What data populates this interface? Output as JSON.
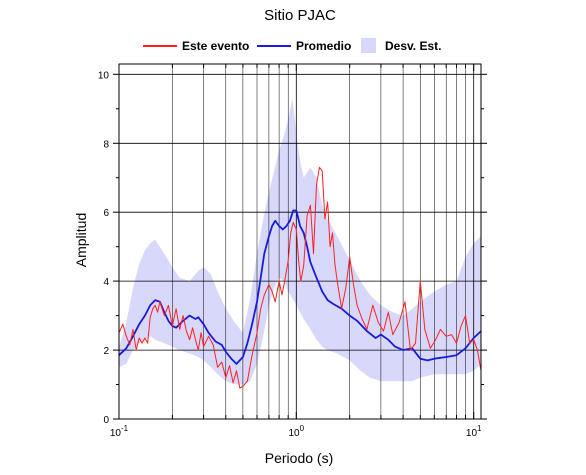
{
  "chart_data": {
    "type": "line",
    "title": "Sitio PJAC",
    "xlabel": "Periodo (s)",
    "ylabel": "Amplitud",
    "x_scale": "log",
    "xlim": [
      0.1,
      11
    ],
    "ylim": [
      0,
      10.3
    ],
    "x_ticks": [
      {
        "value": 0.1,
        "base": "10",
        "exp": "-1"
      },
      {
        "value": 1,
        "base": "10",
        "exp": "0"
      },
      {
        "value": 10,
        "base": "10",
        "exp": "1"
      }
    ],
    "y_ticks": [
      0,
      2,
      4,
      6,
      8,
      10
    ],
    "grid": true,
    "legend_position": "top",
    "legend": [
      {
        "label": "Este evento",
        "kind": "line",
        "color": "#ff2020"
      },
      {
        "label": "Promedio",
        "kind": "line",
        "color": "#1a1adc"
      },
      {
        "label": "Desv. Est.",
        "kind": "band",
        "color": "#d8d8fb"
      }
    ],
    "band": {
      "name": "Desv. Est.",
      "color": "#d8d8fb",
      "x": [
        0.1,
        0.11,
        0.12,
        0.13,
        0.14,
        0.15,
        0.16,
        0.18,
        0.2,
        0.22,
        0.25,
        0.28,
        0.3,
        0.33,
        0.36,
        0.4,
        0.45,
        0.5,
        0.55,
        0.6,
        0.65,
        0.7,
        0.75,
        0.8,
        0.85,
        0.9,
        0.95,
        1.0,
        1.05,
        1.1,
        1.2,
        1.3,
        1.4,
        1.5,
        1.7,
        2.0,
        2.3,
        2.6,
        3.0,
        3.5,
        4.0,
        4.5,
        5.0,
        6.0,
        7.0,
        8.0,
        9.0,
        10.0,
        11.0
      ],
      "upper": [
        2.1,
        2.8,
        3.8,
        4.5,
        4.9,
        5.1,
        5.2,
        4.8,
        4.4,
        4.1,
        4.0,
        4.3,
        4.4,
        4.2,
        3.7,
        3.2,
        2.8,
        2.5,
        3.5,
        4.8,
        5.8,
        6.6,
        7.2,
        7.8,
        8.2,
        8.7,
        9.3,
        8.3,
        7.5,
        7.0,
        7.3,
        7.0,
        6.2,
        5.8,
        5.3,
        4.6,
        4.0,
        3.6,
        3.3,
        3.1,
        3.0,
        3.2,
        3.4,
        3.7,
        3.9,
        4.0,
        4.7,
        5.1,
        5.3
      ],
      "lower": [
        1.5,
        1.6,
        2.0,
        2.2,
        2.3,
        2.4,
        2.3,
        2.2,
        2.1,
        2.0,
        1.9,
        1.8,
        1.7,
        1.5,
        1.3,
        1.1,
        1.0,
        1.0,
        1.1,
        1.6,
        2.4,
        3.3,
        3.8,
        4.1,
        4.0,
        3.7,
        3.5,
        3.3,
        3.1,
        2.9,
        2.6,
        2.3,
        2.1,
        2.0,
        1.9,
        1.7,
        1.4,
        1.2,
        1.1,
        1.1,
        1.1,
        1.1,
        1.2,
        1.3,
        1.3,
        1.3,
        1.3,
        1.4,
        1.6
      ]
    },
    "series": [
      {
        "name": "Promedio",
        "color": "#1a1adc",
        "x": [
          0.1,
          0.11,
          0.12,
          0.13,
          0.14,
          0.15,
          0.16,
          0.17,
          0.18,
          0.19,
          0.2,
          0.21,
          0.22,
          0.23,
          0.25,
          0.27,
          0.28,
          0.3,
          0.32,
          0.35,
          0.38,
          0.4,
          0.43,
          0.46,
          0.5,
          0.53,
          0.56,
          0.6,
          0.63,
          0.66,
          0.7,
          0.73,
          0.76,
          0.8,
          0.84,
          0.88,
          0.92,
          0.96,
          1.0,
          1.05,
          1.1,
          1.15,
          1.2,
          1.3,
          1.4,
          1.5,
          1.6,
          1.8,
          2.0,
          2.2,
          2.5,
          2.8,
          3.0,
          3.3,
          3.6,
          4.0,
          4.5,
          5.0,
          5.5,
          6.0,
          7.0,
          8.0,
          9.0,
          10.0,
          11.0
        ],
        "y": [
          1.85,
          2.05,
          2.4,
          2.75,
          3.0,
          3.3,
          3.45,
          3.4,
          3.1,
          2.85,
          2.7,
          2.65,
          2.75,
          2.85,
          3.0,
          2.9,
          2.95,
          2.75,
          2.5,
          2.25,
          2.15,
          1.95,
          1.75,
          1.6,
          1.8,
          2.2,
          2.7,
          3.4,
          4.1,
          4.8,
          5.3,
          5.6,
          5.75,
          5.6,
          5.5,
          5.6,
          5.75,
          6.05,
          6.05,
          5.6,
          5.4,
          5.0,
          4.55,
          4.1,
          3.7,
          3.45,
          3.35,
          3.2,
          3.0,
          2.85,
          2.55,
          2.35,
          2.45,
          2.3,
          2.1,
          2.0,
          2.05,
          1.75,
          1.7,
          1.75,
          1.8,
          1.85,
          2.05,
          2.35,
          2.55
        ]
      },
      {
        "name": "Este evento",
        "color": "#ff2020",
        "x": [
          0.1,
          0.105,
          0.11,
          0.115,
          0.12,
          0.125,
          0.13,
          0.135,
          0.14,
          0.145,
          0.15,
          0.155,
          0.16,
          0.165,
          0.17,
          0.18,
          0.19,
          0.2,
          0.21,
          0.22,
          0.23,
          0.24,
          0.25,
          0.26,
          0.27,
          0.28,
          0.29,
          0.3,
          0.32,
          0.34,
          0.36,
          0.38,
          0.4,
          0.42,
          0.44,
          0.46,
          0.48,
          0.5,
          0.53,
          0.56,
          0.6,
          0.63,
          0.66,
          0.7,
          0.73,
          0.76,
          0.8,
          0.83,
          0.86,
          0.9,
          0.93,
          0.96,
          1.0,
          1.03,
          1.06,
          1.1,
          1.15,
          1.2,
          1.25,
          1.3,
          1.35,
          1.4,
          1.45,
          1.5,
          1.55,
          1.6,
          1.65,
          1.7,
          1.8,
          1.9,
          2.0,
          2.1,
          2.2,
          2.35,
          2.5,
          2.7,
          2.9,
          3.1,
          3.3,
          3.5,
          3.8,
          4.1,
          4.4,
          4.7,
          5.0,
          5.3,
          5.7,
          6.1,
          6.5,
          7.0,
          7.5,
          8.0,
          8.5,
          9.0,
          9.5,
          10.0,
          10.5,
          11.0
        ],
        "y": [
          2.5,
          2.75,
          2.4,
          2.15,
          2.6,
          2.0,
          2.35,
          2.2,
          2.35,
          2.2,
          2.95,
          3.2,
          3.3,
          3.1,
          3.4,
          3.0,
          3.3,
          2.7,
          3.2,
          2.6,
          3.0,
          2.55,
          2.3,
          2.65,
          2.3,
          2.0,
          2.5,
          2.1,
          2.4,
          2.15,
          1.5,
          1.65,
          1.2,
          1.55,
          1.05,
          1.4,
          0.9,
          0.95,
          1.1,
          1.8,
          2.5,
          3.2,
          3.6,
          3.9,
          3.7,
          3.4,
          4.0,
          3.6,
          4.0,
          4.6,
          5.4,
          5.7,
          5.5,
          4.6,
          4.0,
          4.45,
          5.9,
          6.2,
          4.8,
          6.8,
          7.3,
          7.2,
          5.8,
          6.3,
          5.0,
          5.4,
          4.5,
          4.0,
          3.2,
          3.8,
          4.7,
          3.9,
          3.3,
          2.9,
          2.6,
          3.3,
          2.8,
          2.55,
          3.1,
          2.45,
          2.8,
          3.4,
          2.0,
          2.2,
          4.0,
          2.6,
          2.05,
          2.3,
          2.6,
          2.4,
          2.45,
          2.2,
          2.7,
          3.0,
          2.2,
          2.3,
          2.0,
          1.4
        ]
      }
    ]
  }
}
